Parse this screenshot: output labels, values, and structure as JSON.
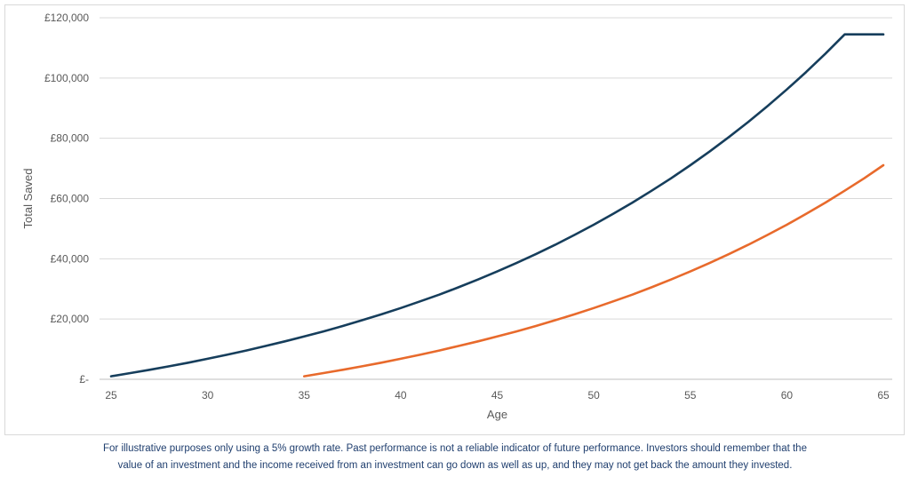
{
  "chart_data": {
    "type": "line",
    "title": "",
    "xlabel": "Age",
    "ylabel": "Total Saved",
    "xlim": [
      25,
      65
    ],
    "ylim": [
      0,
      120000
    ],
    "x_ticks": [
      "25",
      "30",
      "35",
      "40",
      "45",
      "50",
      "55",
      "60",
      "65"
    ],
    "y_ticks": [
      "£-",
      "£20,000",
      "£40,000",
      "£60,000",
      "£80,000",
      "£100,000",
      "£120,000"
    ],
    "grid": "horizontal",
    "legend": "none",
    "series": [
      {
        "color": "#163e5c",
        "x": [
          25,
          26,
          27,
          28,
          29,
          30,
          31,
          32,
          33,
          34,
          35,
          36,
          37,
          38,
          39,
          40,
          41,
          42,
          43,
          44,
          45,
          46,
          47,
          48,
          49,
          50,
          51,
          52,
          53,
          54,
          55,
          56,
          57,
          58,
          59,
          60,
          61,
          62,
          63,
          64,
          65
        ],
        "y": [
          1000,
          2050,
          3150,
          4300,
          5500,
          6800,
          8150,
          9550,
          11050,
          12600,
          14200,
          15900,
          17700,
          19600,
          21550,
          23650,
          25850,
          28100,
          30550,
          33100,
          35800,
          38600,
          41550,
          44650,
          47900,
          51300,
          54900,
          58650,
          62600,
          66700,
          71050,
          75600,
          80400,
          85400,
          90650,
          96200,
          102000,
          108100,
          114500,
          114500,
          114500
        ]
      },
      {
        "color": "#e86a2c",
        "x": [
          35,
          36,
          37,
          38,
          39,
          40,
          41,
          42,
          43,
          44,
          45,
          46,
          47,
          48,
          49,
          50,
          51,
          52,
          53,
          54,
          55,
          56,
          57,
          58,
          59,
          60,
          61,
          62,
          63,
          64,
          65
        ],
        "y": [
          1000,
          2050,
          3150,
          4300,
          5500,
          6800,
          8150,
          9550,
          11050,
          12600,
          14200,
          15900,
          17700,
          19600,
          21550,
          23650,
          25850,
          28100,
          30550,
          33100,
          35800,
          38600,
          41550,
          44650,
          47900,
          51300,
          54900,
          58650,
          62600,
          66700,
          71050
        ]
      }
    ]
  },
  "footnote": {
    "line1": "For illustrative purposes only using a 5% growth rate. Past performance is not a reliable indicator of future performance. Investors should remember that the",
    "line2": "value of an investment and the income received from an investment can go down as well as up, and they may not get back the amount they invested."
  }
}
